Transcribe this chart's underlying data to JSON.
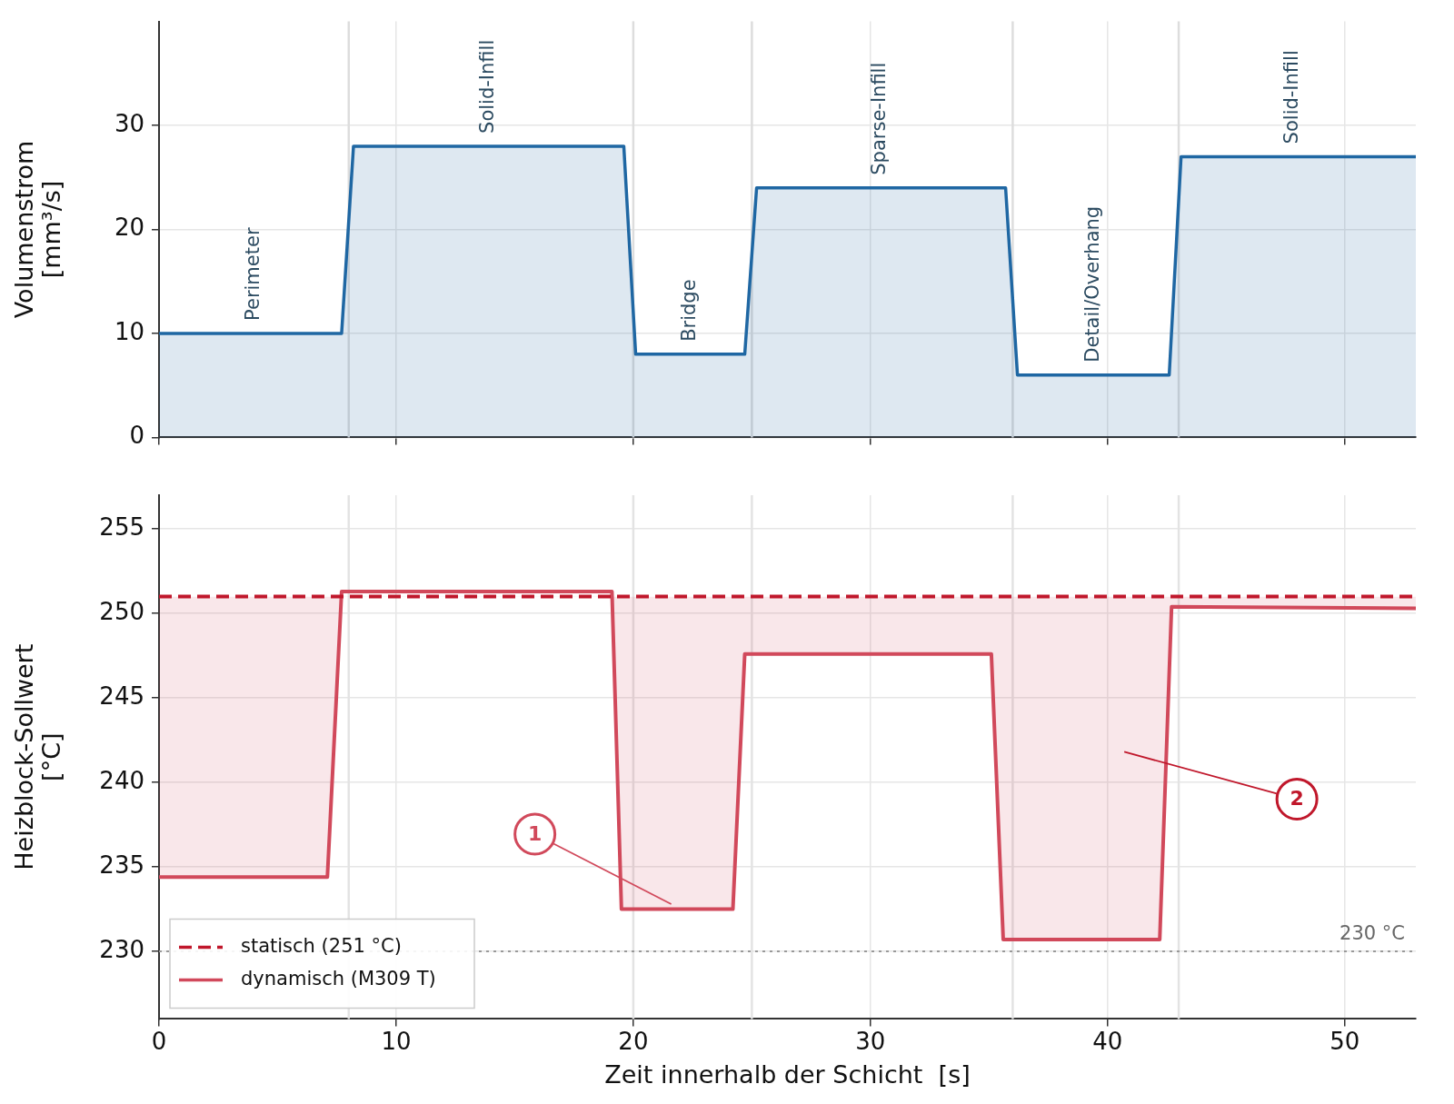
{
  "chart_data": [
    {
      "type": "area",
      "ylabel": "Volumenstrom\n[mm³/s]",
      "xlim": [
        0,
        53
      ],
      "xticks": [
        0,
        10,
        20,
        30,
        40,
        50
      ],
      "ylim": [
        0,
        40
      ],
      "yticks": [
        0,
        10,
        20,
        30
      ],
      "grid": true,
      "tick_labels": "y",
      "series": [
        {
          "color": "#1f67a3",
          "x": [
            0,
            7.7,
            8.2,
            19.6,
            20.1,
            24.7,
            25.2,
            35.7,
            36.2,
            42.6,
            43.1,
            53
          ],
          "values": [
            10,
            10,
            28,
            28,
            8,
            8,
            24,
            24,
            6,
            6,
            27,
            27
          ]
        }
      ],
      "ref_lines": [
        {
          "axis": "x",
          "value": 8,
          "color": "#dddddd"
        },
        {
          "axis": "x",
          "value": 20,
          "color": "#dddddd"
        },
        {
          "axis": "x",
          "value": 25,
          "color": "#dddddd"
        },
        {
          "axis": "x",
          "value": 36,
          "color": "#dddddd"
        },
        {
          "axis": "x",
          "value": 43,
          "color": "#dddddd"
        }
      ],
      "annotations": [
        {
          "text": "Perimeter",
          "x": 4,
          "y": 10
        },
        {
          "text": "Solid-Infill",
          "x": 13.9,
          "y": 28
        },
        {
          "text": "Bridge",
          "x": 22.4,
          "y": 8
        },
        {
          "text": "Sparse-Infill",
          "x": 30.4,
          "y": 24
        },
        {
          "text": "Detail/Overhang",
          "x": 39.4,
          "y": 6
        },
        {
          "text": "Solid-Infill",
          "x": 47.8,
          "y": 27
        }
      ]
    },
    {
      "type": "line",
      "xlabel": "Zeit innerhalb der Schicht  [s]",
      "ylabel": "Heizblock-Sollwert\n[°C]",
      "xlim": [
        0,
        53
      ],
      "xticks": [
        0,
        10,
        20,
        30,
        40,
        50
      ],
      "ylim": [
        226,
        257
      ],
      "yticks": [
        230,
        235,
        240,
        245,
        250,
        255
      ],
      "grid": true,
      "legend": "bottom left",
      "series": [
        {
          "name": "statisch (251 °C)",
          "line_style": "dashed",
          "color": "#c0172b",
          "x": [
            0,
            53
          ],
          "values": [
            251,
            251
          ]
        },
        {
          "name": "dynamisch (M309 T)",
          "line_style": "solid",
          "color": "#d1495b",
          "x": [
            0,
            7.1,
            7.7,
            19.1,
            19.5,
            24.2,
            24.7,
            35.1,
            35.6,
            42.2,
            42.7,
            53
          ],
          "values": [
            234.4,
            234.4,
            251.3,
            251.3,
            232.5,
            232.5,
            247.6,
            247.6,
            230.7,
            230.7,
            250.4,
            250.3
          ],
          "lower": [
            234.4,
            234.4,
            251.3,
            251.3,
            232.5,
            232.5,
            247.6,
            247.6,
            230.7,
            230.7,
            250.4,
            250.3
          ],
          "upper": [
            251,
            251,
            251,
            251,
            251,
            251,
            251,
            251,
            251,
            251,
            251,
            251
          ]
        }
      ],
      "ref_lines": [
        {
          "axis": "x",
          "value": 8,
          "color": "#e3e3e3"
        },
        {
          "axis": "x",
          "value": 20,
          "color": "#e3e3e3"
        },
        {
          "axis": "x",
          "value": 25,
          "color": "#e3e3e3"
        },
        {
          "axis": "x",
          "value": 36,
          "color": "#e3e3e3"
        },
        {
          "axis": "x",
          "value": 43,
          "color": "#e3e3e3"
        },
        {
          "axis": "y",
          "value": 230,
          "label": "230 °C",
          "color": "#999999",
          "line_style": "dotted"
        }
      ],
      "annotations": [
        {
          "text": "1",
          "x": 21.6,
          "y": 232.8
        },
        "2"
      ]
    }
  ]
}
